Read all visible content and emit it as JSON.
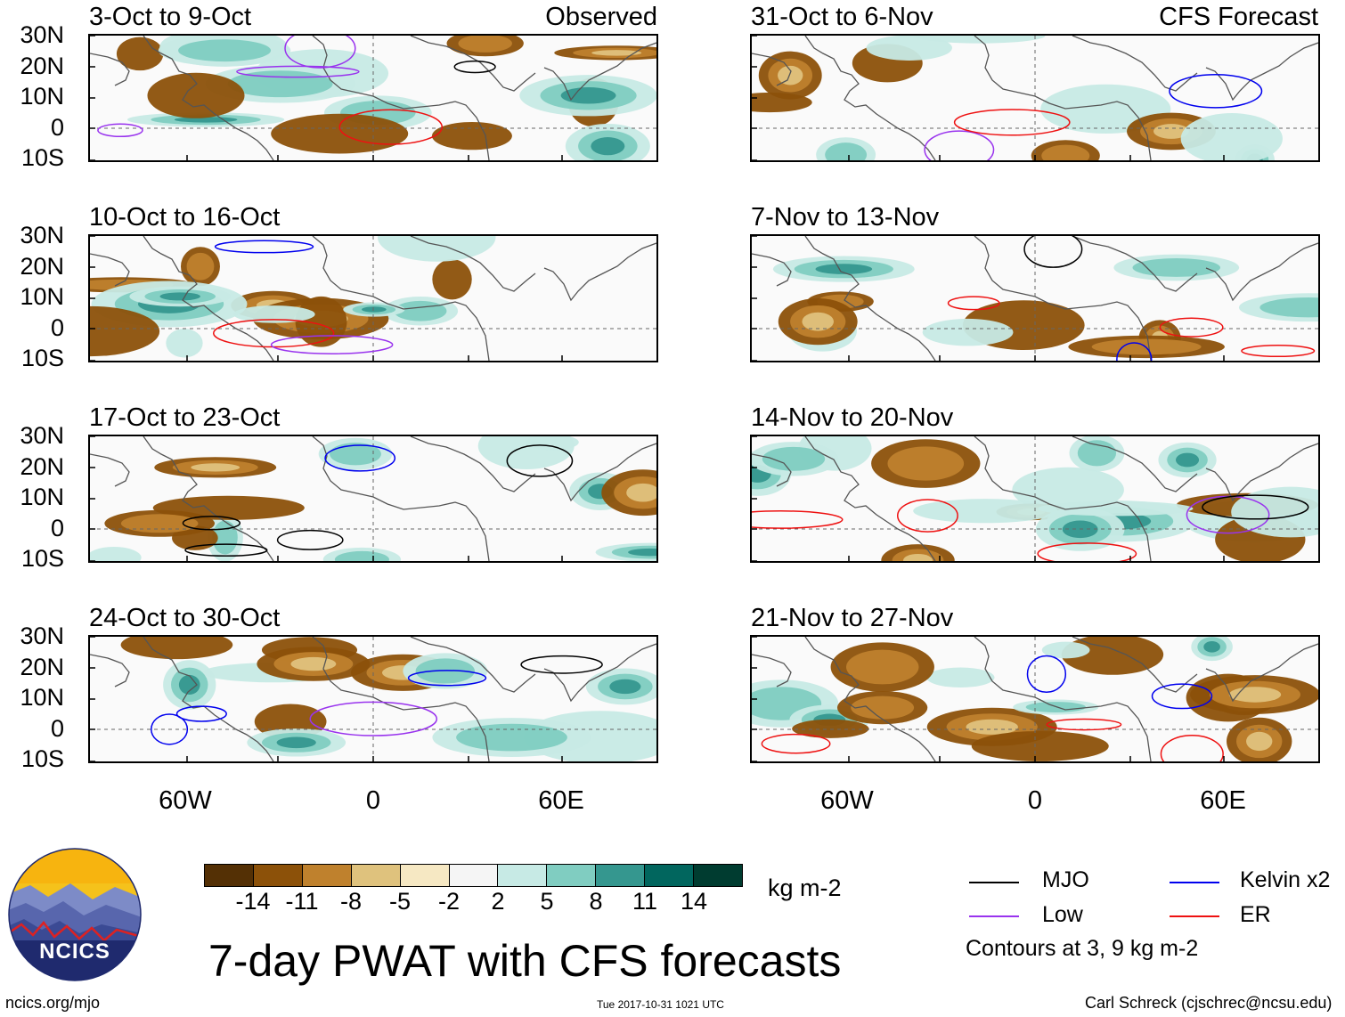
{
  "main_title": "7-day PWAT with CFS forecasts",
  "column_labels": {
    "left": "Observed",
    "right": "CFS Forecast"
  },
  "lat_labels": [
    "30N",
    "20N",
    "10N",
    "0",
    "10S"
  ],
  "lon_labels": [
    "60W",
    "0",
    "60E"
  ],
  "panels": {
    "left": [
      {
        "title": "3-Oct to 9-Oct"
      },
      {
        "title": "10-Oct to 16-Oct"
      },
      {
        "title": "17-Oct to 23-Oct"
      },
      {
        "title": "24-Oct to 30-Oct"
      }
    ],
    "right": [
      {
        "title": "31-Oct to 6-Nov"
      },
      {
        "title": "7-Nov to 13-Nov"
      },
      {
        "title": "14-Nov to 20-Nov"
      },
      {
        "title": "21-Nov to 27-Nov"
      }
    ]
  },
  "colorbar": {
    "unit": "kg m-2",
    "tick_labels": [
      "-14",
      "-11",
      "-8",
      "-5",
      "-2",
      "2",
      "5",
      "8",
      "11",
      "14"
    ],
    "colors": [
      "#543005",
      "#8c5109",
      "#bf812d",
      "#dfc27d",
      "#f6e8c3",
      "#f5f5f5",
      "#c7eae5",
      "#80cdc1",
      "#35978f",
      "#01665e",
      "#003c30"
    ]
  },
  "legend": {
    "items": [
      {
        "label": "MJO",
        "color": "#000000"
      },
      {
        "label": "Kelvin x2",
        "color": "#0000ee"
      },
      {
        "label": "Low",
        "color": "#9933ee"
      },
      {
        "label": "ER",
        "color": "#ee1111"
      }
    ],
    "note": "Contours at 3, 9 kg m-2"
  },
  "logo": {
    "text": "NCICS"
  },
  "footer": {
    "website": "ncics.org/mjo",
    "timestamp": "Tue 2017-10-31 1021 UTC",
    "credit": "Carl Schreck (cjschrec@ncsu.edu)"
  }
}
